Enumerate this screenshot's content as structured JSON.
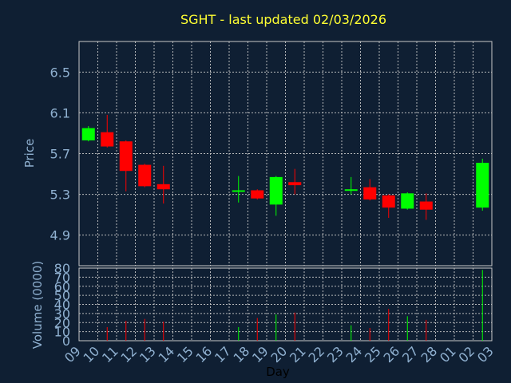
{
  "chart_data": {
    "type": "candlestick",
    "title": "SGHT - last updated 02/03/2026",
    "xlabel": "Day",
    "price_axis": {
      "label": "Price",
      "range": [
        4.6,
        6.8
      ],
      "ticks": [
        "4.9",
        "5.3",
        "5.7",
        "6.1",
        "6.5"
      ]
    },
    "volume_axis": {
      "label": "Volume (0000)",
      "range": [
        0,
        80
      ],
      "ticks": [
        "0",
        "10",
        "20",
        "30",
        "40",
        "50",
        "60",
        "70",
        "80"
      ]
    },
    "x_ticks": [
      "09",
      "10",
      "11",
      "12",
      "13",
      "14",
      "15",
      "16",
      "17",
      "18",
      "19",
      "20",
      "21",
      "22",
      "23",
      "24",
      "25",
      "26",
      "27",
      "28",
      "01",
      "02",
      "03"
    ],
    "grid": true,
    "colors": {
      "up": "#00ff00",
      "down": "#ff0000",
      "background": "#0f1f33",
      "title": "#ffff33",
      "axis_text": "#8fb0d0"
    },
    "candles": [
      {
        "day": "09",
        "open": 5.83,
        "close": 5.95,
        "high": 5.97,
        "low": 5.82,
        "volume": 0
      },
      {
        "day": "10",
        "open": 5.91,
        "close": 5.77,
        "high": 6.08,
        "low": 5.76,
        "volume": 15
      },
      {
        "day": "11",
        "open": 5.82,
        "close": 5.53,
        "high": 5.83,
        "low": 5.33,
        "volume": 22
      },
      {
        "day": "12",
        "open": 5.59,
        "close": 5.38,
        "high": 5.6,
        "low": 5.37,
        "volume": 24
      },
      {
        "day": "13",
        "open": 5.4,
        "close": 5.35,
        "high": 5.58,
        "low": 5.21,
        "volume": 21
      },
      {
        "day": "17",
        "open": 5.33,
        "close": 5.34,
        "high": 5.48,
        "low": 5.22,
        "volume": 15
      },
      {
        "day": "18",
        "open": 5.34,
        "close": 5.26,
        "high": 5.35,
        "low": 5.25,
        "volume": 25
      },
      {
        "day": "19",
        "open": 5.2,
        "close": 5.47,
        "high": 5.48,
        "low": 5.09,
        "volume": 29
      },
      {
        "day": "20",
        "open": 5.42,
        "close": 5.39,
        "high": 5.55,
        "low": 5.3,
        "volume": 31
      },
      {
        "day": "23",
        "open": 5.34,
        "close": 5.35,
        "high": 5.47,
        "low": 5.3,
        "volume": 17
      },
      {
        "day": "24",
        "open": 5.37,
        "close": 5.25,
        "high": 5.45,
        "low": 5.24,
        "volume": 14
      },
      {
        "day": "25",
        "open": 5.29,
        "close": 5.17,
        "high": 5.3,
        "low": 5.07,
        "volume": 35
      },
      {
        "day": "26",
        "open": 5.16,
        "close": 5.31,
        "high": 5.32,
        "low": 5.15,
        "volume": 27
      },
      {
        "day": "27",
        "open": 5.23,
        "close": 5.15,
        "high": 5.31,
        "low": 5.05,
        "volume": 23
      },
      {
        "day": "02",
        "open": 5.17,
        "close": 5.61,
        "high": 5.65,
        "low": 5.14,
        "volume": 78
      }
    ]
  }
}
